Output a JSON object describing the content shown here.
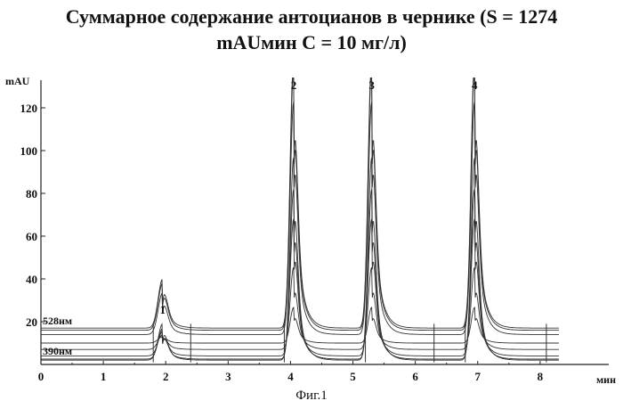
{
  "title_line1": "Суммарное содержание антоцианов в чернике (S = 1274",
  "title_line2": "mAUмин С = 10 мг/л)",
  "caption": "Фиг.1",
  "chart_data": {
    "type": "line",
    "title": "Суммарное содержание антоцианов в чернике (S = 1274 mAUмин С = 10 мг/л)",
    "xlabel": "мин",
    "ylabel": "mAU",
    "xlim": [
      0,
      9.1
    ],
    "ylim": [
      0,
      135
    ],
    "x_ticks": [
      "0",
      "1",
      "2",
      "3",
      "4",
      "5",
      "6",
      "7",
      "8"
    ],
    "y_ticks": [
      "20",
      "40",
      "60",
      "80",
      "100",
      "120"
    ],
    "grid": false,
    "peaks": [
      {
        "label": "1",
        "time": 1.95,
        "height": 23
      },
      {
        "label": "2",
        "time": 4.05,
        "height": 128
      },
      {
        "label": "3",
        "time": 5.3,
        "height": 128
      },
      {
        "label": "4",
        "time": 6.95,
        "height": 128
      }
    ],
    "traces": [
      {
        "name": "390нм",
        "baseline": 10,
        "scale": 0.13
      },
      {
        "name": "",
        "baseline": 7,
        "scale": 0.3
      },
      {
        "name": "",
        "baseline": 4,
        "scale": 0.5
      },
      {
        "name": "",
        "baseline": 2.5,
        "scale": 0.62
      },
      {
        "name": "",
        "baseline": 2,
        "scale": 0.74
      },
      {
        "name": "",
        "baseline": 14,
        "scale": 0.85
      },
      {
        "name": "",
        "baseline": 16,
        "scale": 0.96
      },
      {
        "name": "528нм",
        "baseline": 17,
        "scale": 1.0
      }
    ],
    "integration_markers": [
      1.8,
      2.4,
      3.9,
      5.2,
      6.3,
      6.8,
      8.1
    ]
  }
}
